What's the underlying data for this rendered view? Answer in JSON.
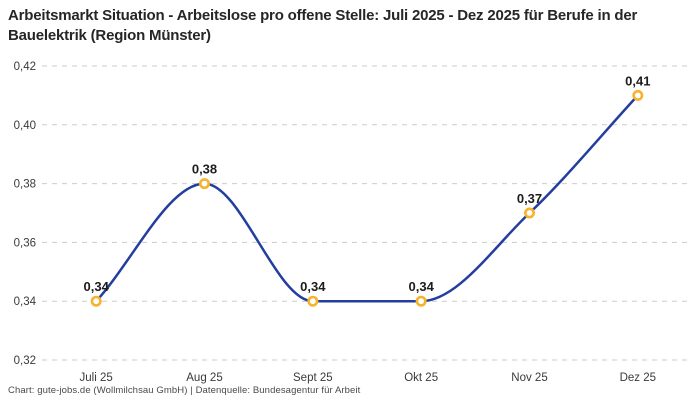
{
  "header": {
    "title": "Arbeitsmarkt Situation - Arbeitslose pro offene Stelle: Juli 2025 - Dez 2025 für Berufe in der Bauelektrik (Region Münster)"
  },
  "footer": {
    "credit": "Chart: gute-jobs.de (Wollmilchsau GmbH) | Datenquelle: Bundesagentur für Arbeit"
  },
  "chart_data": {
    "type": "line",
    "title": "Arbeitsmarkt Situation - Arbeitslose pro offene Stelle: Juli 2025 - Dez 2025 für Berufe in der Bauelektrik (Region Münster)",
    "categories": [
      "Juli 25",
      "Aug 25",
      "Sept 25",
      "Okt 25",
      "Nov 25",
      "Dez 25"
    ],
    "series": [
      {
        "name": "Arbeitslose pro offene Stelle",
        "values": [
          0.34,
          0.38,
          0.34,
          0.34,
          0.37,
          0.41
        ]
      }
    ],
    "point_labels": [
      "0,34",
      "0,38",
      "0,34",
      "0,34",
      "0,37",
      "0,41"
    ],
    "xlabel": "",
    "ylabel": "",
    "ylim": [
      0.32,
      0.42
    ],
    "yticks": [
      0.32,
      0.34,
      0.36,
      0.38,
      0.4,
      0.42
    ],
    "ytick_labels": [
      "0,32",
      "0,34",
      "0,36",
      "0,38",
      "0,40",
      "0,42"
    ],
    "grid": "horizontal dashed",
    "legend": "none",
    "line_style": "smooth monotone spline",
    "colors": {
      "background": "#FFFFFF",
      "line": "#233E9E",
      "marker_ring": "#F7B32B",
      "marker_fill": "#FFFFFF",
      "grid": "#CBCBCB",
      "title": "#262626",
      "tick": "#3A3A3A",
      "point_label": "#1C1C1C",
      "footer": "#4A4A4A"
    }
  }
}
